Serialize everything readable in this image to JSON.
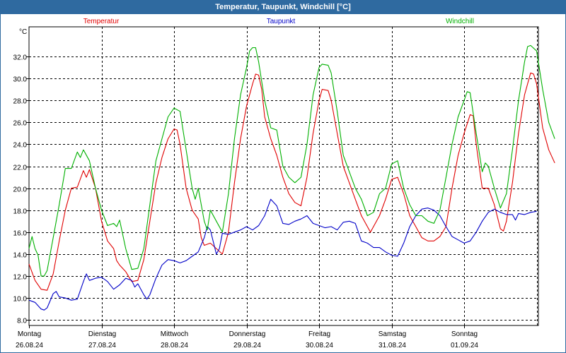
{
  "window_title": "Temperatur, Taupunkt, Windchill [°C]",
  "chart_data": {
    "type": "line",
    "title": "Temperatur, Taupunkt, Windchill [°C]",
    "ylabel": "°C",
    "xlabel": "",
    "ylim": [
      7.5,
      34.7
    ],
    "yticks": [
      8.0,
      10.0,
      12.0,
      14.0,
      16.0,
      18.0,
      20.0,
      22.0,
      24.0,
      26.0,
      28.0,
      30.0,
      32.0
    ],
    "grid": true,
    "x_unit": "hours since the first day label, 1 tick = 24 h",
    "xlim": [
      0,
      174
    ],
    "x_day_labels": [
      {
        "day": "Montag",
        "date": "26.08.24"
      },
      {
        "day": "Dienstag",
        "date": "27.08.24"
      },
      {
        "day": "Mittwoch",
        "date": "28.08.24"
      },
      {
        "day": "Donnerstag",
        "date": "29.08.24"
      },
      {
        "day": "Freitag",
        "date": "30.08.24"
      },
      {
        "day": "Samstag",
        "date": "31.08.24"
      },
      {
        "day": "Sonntag",
        "date": "01.09.24"
      }
    ],
    "series": [
      {
        "name": "Temperatur",
        "color": "#e00000",
        "legend_position": "top-left",
        "points": [
          [
            0,
            13.1
          ],
          [
            2,
            11.6
          ],
          [
            4,
            10.8
          ],
          [
            6,
            10.7
          ],
          [
            8,
            12.2
          ],
          [
            10,
            15.2
          ],
          [
            12,
            18.0
          ],
          [
            14,
            20.0
          ],
          [
            16,
            20.1
          ],
          [
            18,
            21.6
          ],
          [
            19,
            21.0
          ],
          [
            20,
            21.7
          ],
          [
            22,
            20.0
          ],
          [
            24,
            17.0
          ],
          [
            26,
            15.2
          ],
          [
            28,
            14.5
          ],
          [
            29,
            13.4
          ],
          [
            30,
            13.0
          ],
          [
            32,
            12.4
          ],
          [
            34,
            11.5
          ],
          [
            36,
            11.6
          ],
          [
            38,
            13.5
          ],
          [
            40,
            17.0
          ],
          [
            42,
            20.5
          ],
          [
            44,
            22.8
          ],
          [
            46,
            24.5
          ],
          [
            48,
            25.4
          ],
          [
            49,
            25.3
          ],
          [
            50,
            24.0
          ],
          [
            52,
            20.0
          ],
          [
            54,
            18.0
          ],
          [
            56,
            17.2
          ],
          [
            57,
            15.5
          ],
          [
            58,
            14.8
          ],
          [
            60,
            15.0
          ],
          [
            62,
            14.5
          ],
          [
            64,
            14.0
          ],
          [
            66,
            16.0
          ],
          [
            68,
            20.5
          ],
          [
            70,
            24.5
          ],
          [
            72,
            27.5
          ],
          [
            74,
            29.5
          ],
          [
            75,
            30.4
          ],
          [
            76,
            30.3
          ],
          [
            77,
            29.0
          ],
          [
            78,
            26.5
          ],
          [
            80,
            24.5
          ],
          [
            82,
            23.0
          ],
          [
            84,
            21.0
          ],
          [
            86,
            19.5
          ],
          [
            88,
            18.7
          ],
          [
            90,
            18.4
          ],
          [
            92,
            21.0
          ],
          [
            94,
            25.0
          ],
          [
            96,
            28.0
          ],
          [
            97,
            29.0
          ],
          [
            99,
            28.9
          ],
          [
            100,
            28.0
          ],
          [
            102,
            25.0
          ],
          [
            104,
            22.0
          ],
          [
            106,
            20.5
          ],
          [
            108,
            19.0
          ],
          [
            110,
            17.5
          ],
          [
            112,
            16.5
          ],
          [
            113,
            16.0
          ],
          [
            114,
            16.5
          ],
          [
            116,
            17.5
          ],
          [
            118,
            19.0
          ],
          [
            120,
            20.8
          ],
          [
            122,
            21.0
          ],
          [
            124,
            19.5
          ],
          [
            126,
            17.5
          ],
          [
            128,
            16.5
          ],
          [
            130,
            15.5
          ],
          [
            132,
            15.2
          ],
          [
            134,
            15.2
          ],
          [
            136,
            15.6
          ],
          [
            138,
            16.5
          ],
          [
            140,
            20.0
          ],
          [
            142,
            23.0
          ],
          [
            144,
            25.0
          ],
          [
            146,
            26.7
          ],
          [
            147,
            26.6
          ],
          [
            148,
            24.0
          ],
          [
            150,
            20.0
          ],
          [
            152,
            20.0
          ],
          [
            154,
            18.5
          ],
          [
            156,
            16.3
          ],
          [
            157,
            16.1
          ],
          [
            158,
            17.0
          ],
          [
            160,
            20.5
          ],
          [
            162,
            25.0
          ],
          [
            164,
            28.5
          ],
          [
            166,
            30.5
          ],
          [
            167,
            30.4
          ],
          [
            168,
            29.5
          ],
          [
            170,
            25.5
          ],
          [
            172,
            23.5
          ],
          [
            174,
            22.3
          ]
        ]
      },
      {
        "name": "Taupunkt",
        "color": "#0000c8",
        "legend_position": "top-center",
        "points": [
          [
            0,
            9.8
          ],
          [
            2,
            9.6
          ],
          [
            4,
            9.0
          ],
          [
            5,
            8.9
          ],
          [
            6,
            9.1
          ],
          [
            8,
            10.4
          ],
          [
            9,
            10.6
          ],
          [
            10,
            10.1
          ],
          [
            12,
            10.0
          ],
          [
            14,
            9.8
          ],
          [
            16,
            9.9
          ],
          [
            18,
            11.5
          ],
          [
            19,
            12.2
          ],
          [
            20,
            11.6
          ],
          [
            22,
            11.8
          ],
          [
            24,
            11.9
          ],
          [
            26,
            11.5
          ],
          [
            28,
            10.8
          ],
          [
            30,
            11.2
          ],
          [
            32,
            11.8
          ],
          [
            34,
            11.6
          ],
          [
            35,
            11.0
          ],
          [
            36,
            11.3
          ],
          [
            38,
            10.3
          ],
          [
            39,
            9.9
          ],
          [
            40,
            10.3
          ],
          [
            42,
            11.8
          ],
          [
            44,
            13.0
          ],
          [
            46,
            13.5
          ],
          [
            48,
            13.4
          ],
          [
            50,
            13.2
          ],
          [
            52,
            13.4
          ],
          [
            54,
            13.8
          ],
          [
            56,
            14.2
          ],
          [
            58,
            15.5
          ],
          [
            59,
            16.5
          ],
          [
            60,
            16.2
          ],
          [
            62,
            14.0
          ],
          [
            63,
            14.5
          ],
          [
            64,
            15.9
          ],
          [
            66,
            15.8
          ],
          [
            68,
            16.0
          ],
          [
            70,
            16.2
          ],
          [
            72,
            16.5
          ],
          [
            74,
            16.2
          ],
          [
            76,
            16.6
          ],
          [
            78,
            17.5
          ],
          [
            80,
            19.0
          ],
          [
            82,
            18.4
          ],
          [
            84,
            16.8
          ],
          [
            86,
            16.7
          ],
          [
            88,
            17.0
          ],
          [
            90,
            17.2
          ],
          [
            92,
            17.5
          ],
          [
            94,
            16.8
          ],
          [
            96,
            16.6
          ],
          [
            98,
            16.4
          ],
          [
            100,
            16.5
          ],
          [
            102,
            16.2
          ],
          [
            104,
            16.9
          ],
          [
            106,
            17.0
          ],
          [
            108,
            16.8
          ],
          [
            110,
            15.2
          ],
          [
            112,
            15.0
          ],
          [
            114,
            14.6
          ],
          [
            116,
            14.6
          ],
          [
            118,
            14.2
          ],
          [
            120,
            13.9
          ],
          [
            122,
            13.8
          ],
          [
            124,
            15.0
          ],
          [
            126,
            16.5
          ],
          [
            128,
            17.5
          ],
          [
            130,
            18.1
          ],
          [
            132,
            18.2
          ],
          [
            134,
            18.0
          ],
          [
            136,
            17.5
          ],
          [
            138,
            16.5
          ],
          [
            140,
            15.6
          ],
          [
            142,
            15.3
          ],
          [
            144,
            15.0
          ],
          [
            146,
            15.2
          ],
          [
            148,
            16.0
          ],
          [
            150,
            17.0
          ],
          [
            152,
            17.8
          ],
          [
            154,
            18.1
          ],
          [
            156,
            17.8
          ],
          [
            158,
            17.6
          ],
          [
            160,
            17.6
          ],
          [
            161,
            17.1
          ],
          [
            162,
            17.7
          ],
          [
            164,
            17.6
          ],
          [
            166,
            17.8
          ],
          [
            168,
            17.9
          ]
        ]
      },
      {
        "name": "Windchill",
        "color": "#00b000",
        "legend_position": "top-right",
        "points": [
          [
            0,
            14.5
          ],
          [
            1,
            15.6
          ],
          [
            2,
            14.5
          ],
          [
            3,
            13.9
          ],
          [
            4,
            12.0
          ],
          [
            5,
            12.0
          ],
          [
            6,
            12.5
          ],
          [
            8,
            15.5
          ],
          [
            10,
            18.5
          ],
          [
            12,
            21.8
          ],
          [
            14,
            21.8
          ],
          [
            16,
            23.3
          ],
          [
            17,
            22.8
          ],
          [
            18,
            23.5
          ],
          [
            20,
            22.5
          ],
          [
            22,
            20.0
          ],
          [
            24,
            18.0
          ],
          [
            26,
            16.6
          ],
          [
            28,
            16.8
          ],
          [
            29,
            16.5
          ],
          [
            30,
            17.1
          ],
          [
            32,
            14.5
          ],
          [
            34,
            12.6
          ],
          [
            36,
            12.7
          ],
          [
            38,
            14.5
          ],
          [
            40,
            18.5
          ],
          [
            42,
            22.5
          ],
          [
            44,
            24.5
          ],
          [
            46,
            26.5
          ],
          [
            48,
            27.3
          ],
          [
            50,
            27.0
          ],
          [
            52,
            23.5
          ],
          [
            54,
            20.0
          ],
          [
            55,
            19.0
          ],
          [
            56,
            20.0
          ],
          [
            58,
            17.0
          ],
          [
            59,
            16.2
          ],
          [
            60,
            18.0
          ],
          [
            62,
            17.0
          ],
          [
            64,
            16.0
          ],
          [
            66,
            19.5
          ],
          [
            68,
            24.5
          ],
          [
            70,
            28.5
          ],
          [
            72,
            31.0
          ],
          [
            73,
            32.5
          ],
          [
            74,
            32.8
          ],
          [
            75,
            32.8
          ],
          [
            76,
            31.5
          ],
          [
            78,
            28.0
          ],
          [
            80,
            25.5
          ],
          [
            82,
            25.3
          ],
          [
            84,
            22.0
          ],
          [
            86,
            21.0
          ],
          [
            88,
            20.5
          ],
          [
            90,
            21.0
          ],
          [
            92,
            24.0
          ],
          [
            94,
            28.5
          ],
          [
            96,
            31.0
          ],
          [
            97,
            31.3
          ],
          [
            99,
            31.2
          ],
          [
            100,
            30.5
          ],
          [
            102,
            27.0
          ],
          [
            104,
            23.0
          ],
          [
            106,
            21.5
          ],
          [
            108,
            20.0
          ],
          [
            110,
            19.0
          ],
          [
            112,
            17.5
          ],
          [
            114,
            17.8
          ],
          [
            116,
            19.5
          ],
          [
            118,
            20.0
          ],
          [
            120,
            22.2
          ],
          [
            122,
            22.5
          ],
          [
            124,
            20.0
          ],
          [
            126,
            18.5
          ],
          [
            128,
            17.5
          ],
          [
            130,
            17.5
          ],
          [
            132,
            17.0
          ],
          [
            134,
            16.8
          ],
          [
            136,
            18.0
          ],
          [
            138,
            21.0
          ],
          [
            140,
            24.0
          ],
          [
            142,
            26.5
          ],
          [
            144,
            28.0
          ],
          [
            145,
            28.8
          ],
          [
            146,
            28.7
          ],
          [
            148,
            25.0
          ],
          [
            150,
            21.5
          ],
          [
            151,
            22.3
          ],
          [
            152,
            22.0
          ],
          [
            154,
            20.0
          ],
          [
            156,
            18.2
          ],
          [
            158,
            19.5
          ],
          [
            160,
            23.5
          ],
          [
            162,
            28.0
          ],
          [
            164,
            31.5
          ],
          [
            165,
            32.9
          ],
          [
            166,
            33.0
          ],
          [
            168,
            32.5
          ],
          [
            170,
            29.0
          ],
          [
            172,
            26.0
          ],
          [
            174,
            24.5
          ]
        ]
      }
    ]
  }
}
